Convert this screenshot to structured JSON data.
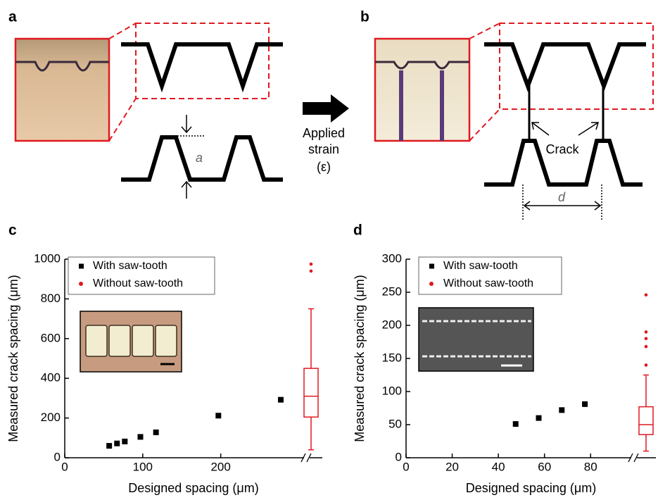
{
  "panel_labels": [
    "a",
    "b",
    "c",
    "d"
  ],
  "diagram": {
    "arrow_label": [
      "Applied",
      "strain",
      "(ε)"
    ],
    "crack_label": "Crack",
    "gap_symbol": "a",
    "spacing_symbol": "d"
  },
  "chart_data": [
    {
      "type": "scatter",
      "xlabel": "Designed spacing (μm)",
      "ylabel": "Measured crack spacing (μm)",
      "xlim": [
        0,
        305
      ],
      "xticks": [
        0,
        100,
        200
      ],
      "ylim": [
        0,
        1000
      ],
      "yticks": [
        0,
        200,
        400,
        600,
        800,
        1000
      ],
      "series": [
        {
          "name": "With saw-tooth",
          "color": "#000000",
          "x": [
            57,
            67,
            77,
            97,
            117,
            197,
            277
          ],
          "values": [
            60,
            72,
            82,
            105,
            128,
            212,
            292
          ]
        },
        {
          "name": "Without saw-tooth",
          "color": "#e0191f",
          "box": {
            "whislo": 40,
            "q1": 205,
            "med": 310,
            "q3": 450,
            "whishi": 750,
            "fliers": [
              940,
              975
            ]
          }
        }
      ]
    },
    {
      "type": "scatter",
      "xlabel": "Designed spacing (μm)",
      "ylabel": "Measured crack spacing (μm)",
      "xlim": [
        0,
        97
      ],
      "xticks": [
        0,
        20,
        40,
        60,
        80
      ],
      "ylim": [
        0,
        300
      ],
      "yticks": [
        0,
        50,
        100,
        150,
        200,
        250,
        300
      ],
      "series": [
        {
          "name": "With saw-tooth",
          "color": "#000000",
          "x": [
            47.5,
            57.5,
            67.5,
            77.5
          ],
          "values": [
            51,
            60,
            72,
            81
          ]
        },
        {
          "name": "Without saw-tooth",
          "color": "#e0191f",
          "box": {
            "whislo": 10,
            "q1": 35,
            "med": 50,
            "q3": 77,
            "whishi": 125,
            "fliers": [
              140,
              168,
              180,
              190,
              246
            ]
          }
        }
      ]
    }
  ]
}
